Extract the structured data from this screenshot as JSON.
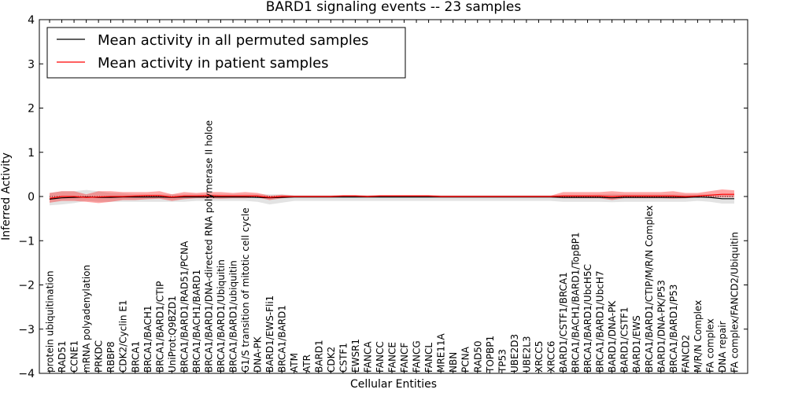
{
  "chart_data": {
    "type": "line",
    "title": "BARD1 signaling events -- 23 samples",
    "xlabel": "Cellular Entities",
    "ylabel": "Inferred Activity",
    "ylim": [
      -4,
      4
    ],
    "yticks": [
      4,
      3,
      2,
      1,
      0,
      -1,
      -2,
      -3,
      -4
    ],
    "ytick_labels": [
      "4",
      "3",
      "2",
      "1",
      "0",
      "−1",
      "−2",
      "−3",
      "−4"
    ],
    "legend": {
      "placement": "top-left",
      "entries": [
        {
          "label": "Mean activity in all permuted samples",
          "color": "#000000"
        },
        {
          "label": "Mean activity in patient samples",
          "color": "#ff0000"
        }
      ]
    },
    "categories": [
      "protein ubiquitination",
      "RAD51",
      "CCNE1",
      "mRNA polyadenylation",
      "PRKDC",
      "RBBP8",
      "CDK2/Cyclin E1",
      "BRCA1",
      "BRCA1/BACH1",
      "BRCA1/BARD1/CTIP",
      "UniProt:Q9BZD1",
      "BRCA1/BARD1/RAD51/PCNA",
      "BRCA1/BACH1/BARD1",
      "BRCA1/BARD1/DNA-directed RNA polymerase II holoe",
      "BRCA1/BARD1/Ubiquitin",
      "BRCA1/BARD1/ubiquitin",
      "G1/S transition of mitotic cell cycle",
      "DNA-PK",
      "BARD1/EWS-Fli1",
      "BRCA1/BARD1",
      "ATM",
      "ATR",
      "BARD1",
      "CDK2",
      "CSTF1",
      "EWSR1",
      "FANCA",
      "FANCC",
      "FANCE",
      "FANCF",
      "FANCG",
      "FANCL",
      "MRE11A",
      "NBN",
      "PCNA",
      "RAD50",
      "TOPBP1",
      "TP53",
      "UBE2D3",
      "UBE2L3",
      "XRCC5",
      "XRCC6",
      "BARD1/CSTF1/BRCA1",
      "BRCA1/BACH1/BARD1/TopBP1",
      "BRCA1/BARD1/UbcH5C",
      "BRCA1/BARD1/UbcH7",
      "BARD1/DNA-PK",
      "BARD1/CSTF1",
      "BARD1/EWS",
      "BRCA1/BARD1/CTIP/M/R/N Complex",
      "BARD1/DNA-PK/P53",
      "BRCA1/BARD1/P53",
      "FANCD2",
      "M/R/N Complex",
      "FA complex",
      "DNA repair",
      "FA complex/FANCD2/Ubiquitin"
    ],
    "series": [
      {
        "name": "Mean activity in all permuted samples",
        "color": "#000000",
        "values": [
          -0.06,
          -0.03,
          -0.02,
          -0.01,
          -0.02,
          -0.02,
          -0.01,
          -0.01,
          -0.01,
          -0.01,
          -0.02,
          -0.01,
          -0.01,
          -0.01,
          -0.01,
          -0.01,
          -0.01,
          -0.02,
          -0.03,
          -0.02,
          -0.01,
          -0.01,
          -0.01,
          -0.01,
          -0.01,
          -0.01,
          -0.01,
          -0.01,
          -0.01,
          -0.01,
          -0.01,
          -0.01,
          -0.01,
          -0.01,
          -0.01,
          -0.01,
          -0.01,
          -0.01,
          -0.01,
          -0.01,
          -0.01,
          -0.01,
          -0.02,
          -0.02,
          -0.02,
          -0.02,
          -0.03,
          -0.02,
          -0.02,
          -0.02,
          -0.02,
          -0.02,
          -0.02,
          -0.01,
          -0.02,
          -0.05,
          -0.05
        ],
        "upper": [
          0.08,
          0.12,
          0.12,
          0.15,
          0.12,
          0.08,
          0.07,
          0.05,
          0.05,
          0.05,
          0.05,
          0.05,
          0.05,
          0.05,
          0.05,
          0.05,
          0.05,
          0.05,
          0.05,
          0.05,
          0.03,
          0.03,
          0.03,
          0.03,
          0.03,
          0.03,
          0.03,
          0.03,
          0.03,
          0.03,
          0.03,
          0.03,
          0.03,
          0.03,
          0.03,
          0.03,
          0.03,
          0.03,
          0.03,
          0.03,
          0.03,
          0.03,
          0.04,
          0.04,
          0.04,
          0.05,
          0.06,
          0.05,
          0.05,
          0.05,
          0.05,
          0.05,
          0.05,
          0.05,
          0.05,
          0.05,
          0.05
        ],
        "lower": [
          -0.2,
          -0.18,
          -0.15,
          -0.1,
          -0.12,
          -0.12,
          -0.12,
          -0.12,
          -0.12,
          -0.12,
          -0.12,
          -0.12,
          -0.1,
          -0.1,
          -0.1,
          -0.1,
          -0.1,
          -0.12,
          -0.18,
          -0.14,
          -0.1,
          -0.1,
          -0.1,
          -0.1,
          -0.1,
          -0.1,
          -0.1,
          -0.1,
          -0.1,
          -0.1,
          -0.1,
          -0.1,
          -0.1,
          -0.1,
          -0.1,
          -0.1,
          -0.1,
          -0.1,
          -0.1,
          -0.1,
          -0.1,
          -0.1,
          -0.12,
          -0.12,
          -0.12,
          -0.12,
          -0.13,
          -0.12,
          -0.12,
          -0.12,
          -0.12,
          -0.12,
          -0.12,
          -0.1,
          -0.12,
          -0.16,
          -0.16
        ]
      },
      {
        "name": "Mean activity in patient samples",
        "color": "#ff0000",
        "values": [
          -0.04,
          0.0,
          0.0,
          -0.02,
          -0.01,
          0.0,
          0.0,
          0.01,
          0.02,
          0.02,
          -0.01,
          0.01,
          0.01,
          0.02,
          0.01,
          0.01,
          0.01,
          0.01,
          -0.02,
          0.0,
          0.0,
          0.0,
          0.0,
          0.0,
          0.01,
          0.01,
          0.0,
          0.01,
          0.01,
          0.01,
          0.01,
          0.01,
          0.0,
          0.0,
          0.0,
          0.0,
          0.0,
          0.0,
          0.0,
          0.0,
          0.0,
          0.0,
          0.01,
          0.01,
          0.01,
          0.01,
          0.0,
          0.01,
          0.01,
          0.01,
          0.01,
          0.01,
          0.0,
          0.01,
          0.03,
          0.05,
          0.05
        ],
        "upper": [
          0.08,
          0.12,
          0.12,
          0.05,
          0.12,
          0.12,
          0.1,
          0.1,
          0.1,
          0.12,
          0.05,
          0.1,
          0.08,
          0.1,
          0.1,
          0.08,
          0.1,
          0.08,
          0.02,
          0.04,
          0.02,
          0.02,
          0.02,
          0.02,
          0.03,
          0.03,
          0.02,
          0.03,
          0.03,
          0.03,
          0.03,
          0.03,
          0.02,
          0.02,
          0.02,
          0.02,
          0.02,
          0.02,
          0.02,
          0.02,
          0.02,
          0.02,
          0.1,
          0.1,
          0.1,
          0.1,
          0.12,
          0.1,
          0.1,
          0.1,
          0.1,
          0.12,
          0.08,
          0.08,
          0.12,
          0.16,
          0.14
        ],
        "lower": [
          -0.14,
          -0.1,
          -0.1,
          -0.12,
          -0.15,
          -0.12,
          -0.08,
          -0.08,
          -0.06,
          -0.05,
          -0.1,
          -0.06,
          -0.04,
          -0.04,
          -0.05,
          -0.04,
          -0.04,
          -0.02,
          -0.08,
          -0.04,
          -0.02,
          -0.02,
          -0.02,
          -0.02,
          -0.01,
          -0.01,
          -0.02,
          -0.01,
          -0.01,
          -0.01,
          -0.01,
          -0.01,
          -0.02,
          -0.02,
          -0.02,
          -0.02,
          -0.02,
          -0.02,
          -0.02,
          -0.02,
          -0.02,
          -0.02,
          -0.04,
          -0.04,
          -0.04,
          -0.04,
          -0.08,
          -0.04,
          -0.04,
          -0.04,
          -0.04,
          -0.05,
          -0.04,
          -0.02,
          -0.02,
          -0.02,
          -0.02
        ]
      }
    ]
  }
}
